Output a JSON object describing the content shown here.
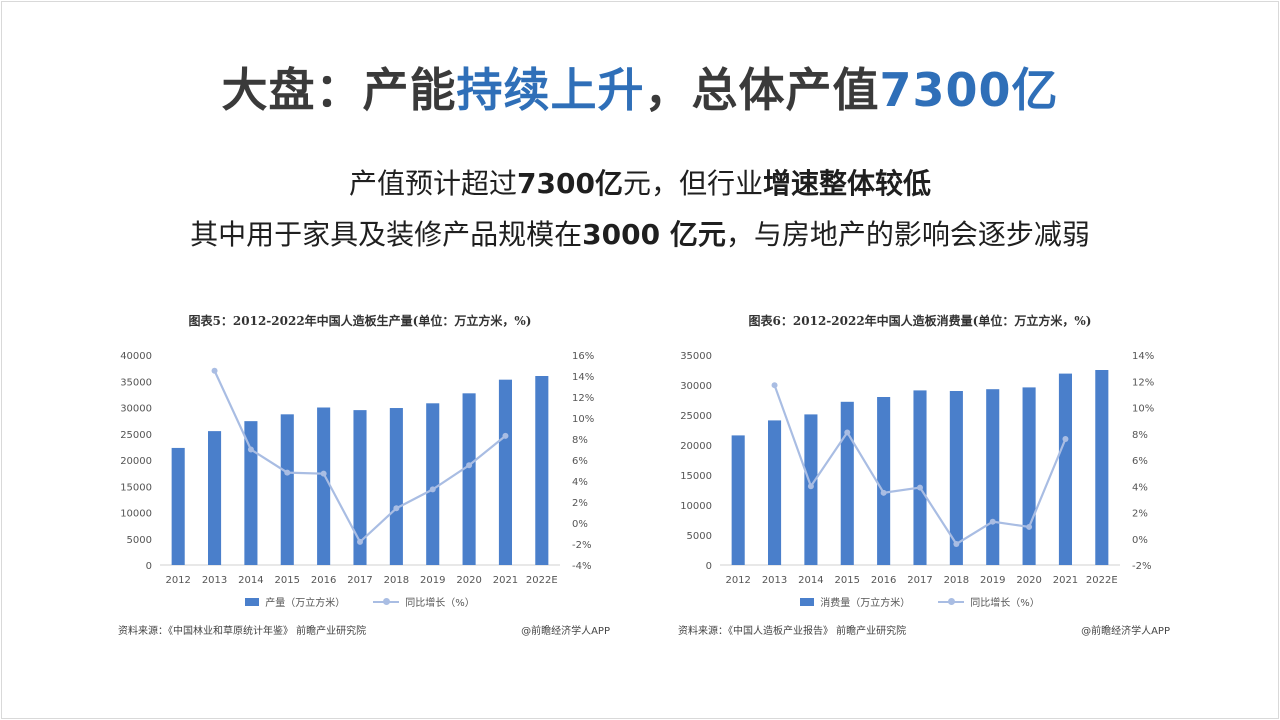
{
  "header": {
    "title_part1": "大盘：产能",
    "title_part2": "持续上升",
    "title_part3": "，总体产值",
    "title_part4": "7300亿"
  },
  "subtitle1": {
    "a": "产值预计超过",
    "b": "7300亿",
    "c": "元，但行业",
    "d": "增速整体较低"
  },
  "subtitle2": {
    "a": "其中用于家具及装修产品规模在",
    "b": "3000 亿元",
    "c": "，与房地产的影响会逐步减弱"
  },
  "colors": {
    "accent": "#2f6fb8",
    "bar": "#4a7fcb",
    "line": "#a9bde3"
  },
  "charts": [
    {
      "source": "资料来源：《中国林业和草原统计年鉴》 前瞻产业研究院",
      "brand": "@前瞻经济学人APP"
    },
    {
      "source": "资料来源：《中国人造板产业报告》 前瞻产业研究院",
      "brand": "@前瞻经济学人APP"
    }
  ],
  "chart_data": [
    {
      "type": "bar",
      "title": "图表5：2012-2022年中国人造板生产量(单位：万立方米，%)",
      "categories": [
        "2012",
        "2013",
        "2014",
        "2015",
        "2016",
        "2017",
        "2018",
        "2019",
        "2020",
        "2021",
        "2022E"
      ],
      "series": [
        {
          "name": "产量（万立方米）",
          "type": "bar",
          "axis": "left",
          "values": [
            22300,
            25500,
            27400,
            28700,
            30000,
            29500,
            29900,
            30800,
            32700,
            35300,
            36000
          ]
        },
        {
          "name": "同比增长（%）",
          "type": "line",
          "axis": "right",
          "values": [
            null,
            14.5,
            7.0,
            4.8,
            4.7,
            -1.8,
            1.4,
            3.2,
            5.5,
            8.3,
            null
          ]
        }
      ],
      "ylim_left": [
        0,
        40000
      ],
      "yticks_left": [
        0,
        5000,
        10000,
        15000,
        20000,
        25000,
        30000,
        35000,
        40000
      ],
      "ylim_right": [
        -4,
        16
      ],
      "yticks_right": [
        -4,
        -2,
        0,
        2,
        4,
        6,
        8,
        10,
        12,
        14,
        16
      ],
      "legend": "bottom"
    },
    {
      "type": "bar",
      "title": "图表6：2012-2022年中国人造板消费量(单位：万立方米，%)",
      "categories": [
        "2012",
        "2013",
        "2014",
        "2015",
        "2016",
        "2017",
        "2018",
        "2019",
        "2020",
        "2021",
        "2022E"
      ],
      "series": [
        {
          "name": "消费量（万立方米）",
          "type": "bar",
          "axis": "left",
          "values": [
            21600,
            24100,
            25100,
            27200,
            28000,
            29100,
            29000,
            29300,
            29600,
            31900,
            32500
          ]
        },
        {
          "name": "同比增长（%）",
          "type": "line",
          "axis": "right",
          "values": [
            null,
            11.7,
            4.0,
            8.1,
            3.5,
            3.9,
            -0.4,
            1.3,
            0.9,
            7.6,
            null
          ]
        }
      ],
      "ylim_left": [
        0,
        35000
      ],
      "yticks_left": [
        0,
        5000,
        10000,
        15000,
        20000,
        25000,
        30000,
        35000
      ],
      "ylim_right": [
        -2,
        14
      ],
      "yticks_right": [
        -2,
        0,
        2,
        4,
        6,
        8,
        10,
        12,
        14
      ],
      "legend": "bottom"
    }
  ]
}
